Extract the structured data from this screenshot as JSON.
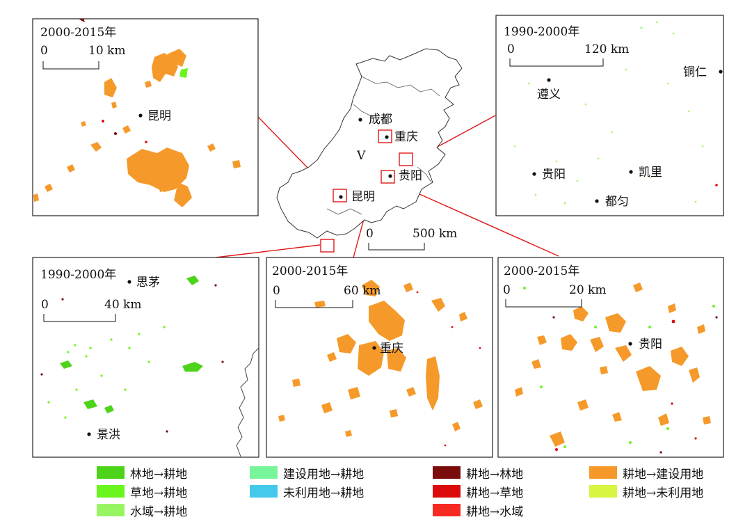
{
  "insets": {
    "kunming": {
      "title": "2000-2015年",
      "scale_min": "0",
      "scale_max": "10 km",
      "city": "昆明"
    },
    "southwest": {
      "title": "1990-2000年",
      "scale_min": "0",
      "scale_max": "40 km",
      "cities": [
        "思茅",
        "景洪"
      ]
    },
    "chongqing": {
      "title": "2000-2015年",
      "scale_min": "0",
      "scale_max": "60 km",
      "city": "重庆"
    },
    "guiyang": {
      "title": "2000-2015年",
      "scale_min": "0",
      "scale_max": "20 km",
      "city": "贵阳"
    },
    "guizhou": {
      "title": "1990-2000年",
      "scale_min": "0",
      "scale_max": "120 km",
      "cities": [
        "遵义",
        "铜仁",
        "贵阳",
        "凯里",
        "都匀"
      ]
    }
  },
  "main_map": {
    "region_label": "V",
    "cities": [
      "成都",
      "重庆",
      "贵阳",
      "昆明"
    ],
    "scale_min": "0",
    "scale_max": "500 km"
  },
  "legend": [
    {
      "label": "林地→耕地",
      "color": "#4cd31a"
    },
    {
      "label": "草地→耕地",
      "color": "#6bf51e"
    },
    {
      "label": "水域→耕地",
      "color": "#98f562"
    },
    {
      "label": "建设用地→耕地",
      "color": "#78f59a"
    },
    {
      "label": "未利用地→耕地",
      "color": "#44c8ec"
    },
    {
      "label": "耕地→林地",
      "color": "#7a0c0c"
    },
    {
      "label": "耕地→草地",
      "color": "#dc0c0c"
    },
    {
      "label": "耕地→水域",
      "color": "#f52a22"
    },
    {
      "label": "耕地→建设用地",
      "color": "#f59a2a"
    },
    {
      "label": "耕地→未利用地",
      "color": "#d8f542"
    }
  ],
  "colors": {
    "built": "#f59a2a",
    "forest_to_crop": "#4cd31a",
    "grass_to_crop": "#6bf51e",
    "water_to_crop": "#98f562",
    "crop_to_forest": "#7a0c0c",
    "crop_to_grass": "#dc0c0c",
    "leader": "#e01818"
  }
}
